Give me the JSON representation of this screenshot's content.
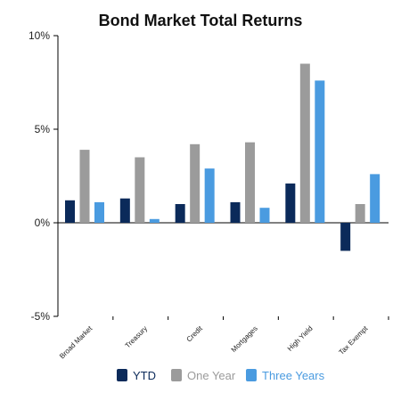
{
  "chart_data": {
    "type": "bar",
    "title": "Bond Market Total Returns",
    "categories": [
      "Broad Market",
      "Treasury",
      "Credit",
      "Mortgages",
      "High Yield",
      "Tax Exempt"
    ],
    "series": [
      {
        "name": "YTD",
        "color": "#0b2a5a",
        "values": [
          1.2,
          1.3,
          1.0,
          1.1,
          2.1,
          -1.5
        ]
      },
      {
        "name": "One Year",
        "color": "#9b9b9b",
        "values": [
          3.9,
          3.5,
          4.2,
          4.3,
          8.5,
          1.0
        ]
      },
      {
        "name": "Three Years",
        "color": "#4a9be0",
        "values": [
          1.1,
          0.2,
          2.9,
          0.8,
          7.6,
          2.6
        ]
      }
    ],
    "ylim": [
      -5,
      10
    ],
    "yticks": [
      -5,
      0,
      5,
      10
    ],
    "ytick_labels": [
      "-5%",
      "0%",
      "5%",
      "10%"
    ],
    "xlabel": "",
    "ylabel": "",
    "grid": false,
    "legend_position": "bottom"
  }
}
